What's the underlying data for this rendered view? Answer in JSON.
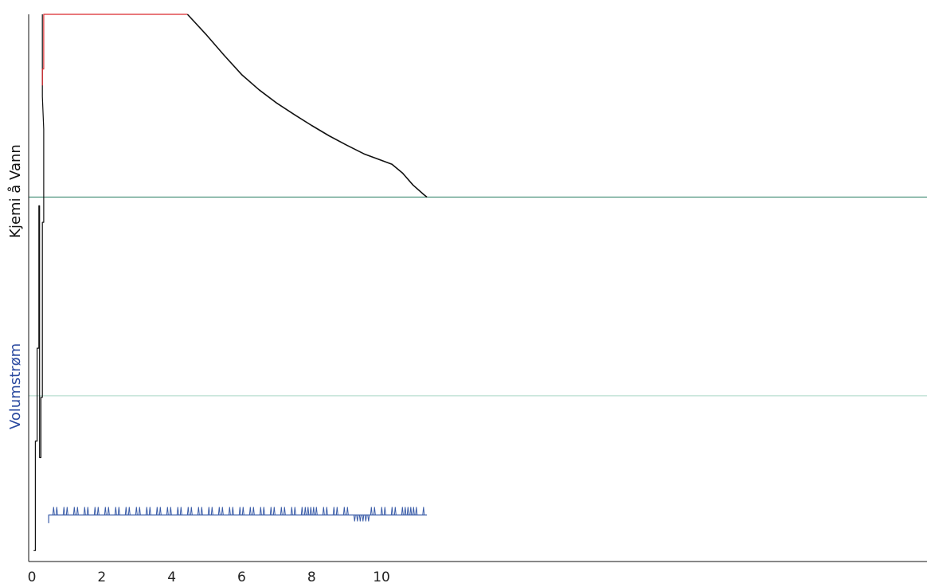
{
  "chart_data": {
    "type": "line",
    "xticks": [
      "0",
      "2",
      "4",
      "6",
      "8",
      "10"
    ],
    "xlim": [
      0,
      25.6
    ],
    "ylim": [
      0,
      1
    ],
    "ylabels": [
      {
        "text": "Kjemi å Vann",
        "color": "#111111"
      },
      {
        "text": "Volumstrøm",
        "color": "#2b4aa0"
      }
    ],
    "reference_lines": [
      {
        "y": 0.666,
        "color": "#3d8a70"
      },
      {
        "y": 0.303,
        "color": "#b8ddd0"
      }
    ],
    "series": [
      {
        "color": "#111111",
        "points": [
          [
            0.05,
            0.02
          ],
          [
            0.1,
            0.02
          ],
          [
            0.1,
            0.22
          ],
          [
            0.15,
            0.22
          ],
          [
            0.15,
            0.39
          ],
          [
            0.2,
            0.39
          ],
          [
            0.2,
            0.65
          ],
          [
            0.22,
            0.65
          ],
          [
            0.22,
            0.19
          ],
          [
            0.26,
            0.19
          ],
          [
            0.26,
            0.3
          ],
          [
            0.3,
            0.3
          ],
          [
            0.3,
            0.62
          ],
          [
            0.34,
            0.62
          ],
          [
            0.34,
            0.79
          ],
          [
            0.3,
            0.85
          ],
          [
            0.3,
            1.0
          ]
        ]
      },
      {
        "color": "#d9282c",
        "points": [
          [
            0.3,
            0.87
          ],
          [
            0.3,
            0.9
          ],
          [
            0.34,
            0.9
          ],
          [
            0.34,
            1.0
          ],
          [
            4.45,
            1.0
          ]
        ]
      },
      {
        "color": "#111111",
        "points": [
          [
            4.45,
            1.0
          ],
          [
            5.0,
            0.962
          ],
          [
            5.5,
            0.925
          ],
          [
            6.0,
            0.89
          ],
          [
            6.5,
            0.862
          ],
          [
            7.0,
            0.838
          ],
          [
            7.5,
            0.817
          ],
          [
            8.0,
            0.797
          ],
          [
            8.5,
            0.778
          ],
          [
            9.0,
            0.761
          ],
          [
            9.5,
            0.745
          ],
          [
            10.0,
            0.733
          ],
          [
            10.3,
            0.726
          ],
          [
            10.6,
            0.71
          ],
          [
            10.9,
            0.688
          ],
          [
            11.2,
            0.671
          ],
          [
            11.3,
            0.666
          ]
        ]
      },
      {
        "color": "#3a5ca8",
        "points": [
          [
            0.48,
            0.07
          ],
          [
            0.48,
            0.085
          ],
          [
            11.3,
            0.085
          ]
        ]
      }
    ]
  }
}
